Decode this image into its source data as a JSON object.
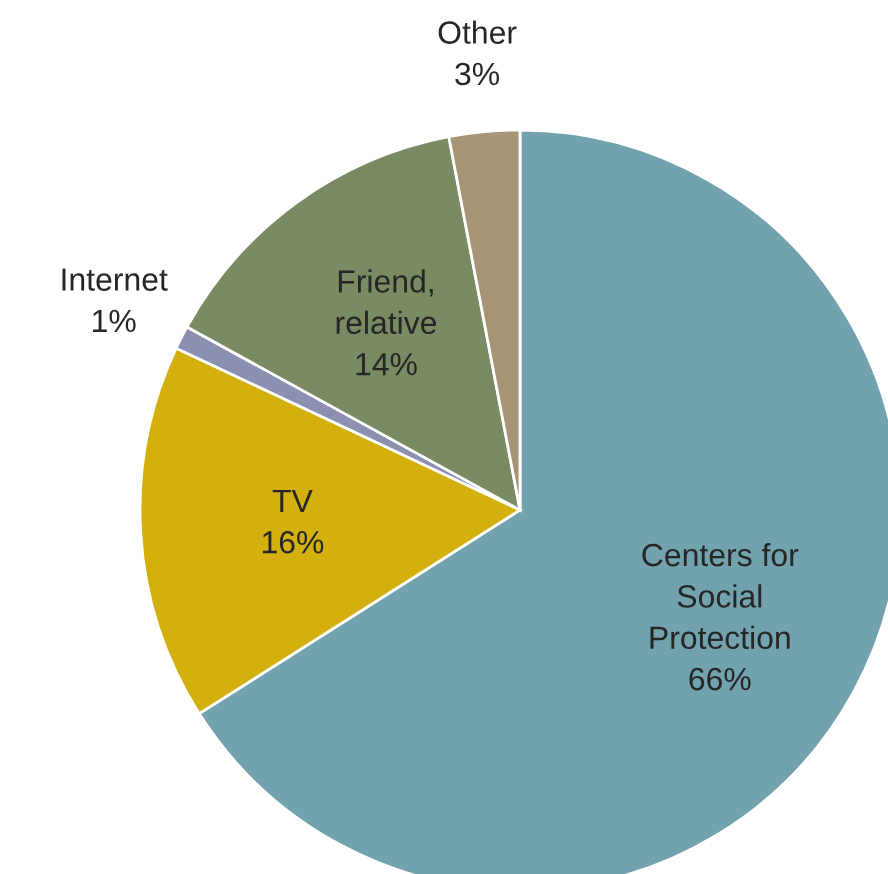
{
  "chart_data": {
    "type": "pie",
    "categories": [
      "Centers for\nSocial\nProtection",
      "TV",
      "Internet",
      "Friend,\nrelative",
      "Other"
    ],
    "values": [
      66,
      16,
      1,
      14,
      3
    ],
    "colors": [
      "#71a2ad",
      "#d4b00f",
      "#8b8fb0",
      "#7a8a62",
      "#a59476"
    ],
    "value_labels": [
      "66%",
      "16%",
      "1%",
      "14%",
      "3%"
    ],
    "legend": false
  }
}
